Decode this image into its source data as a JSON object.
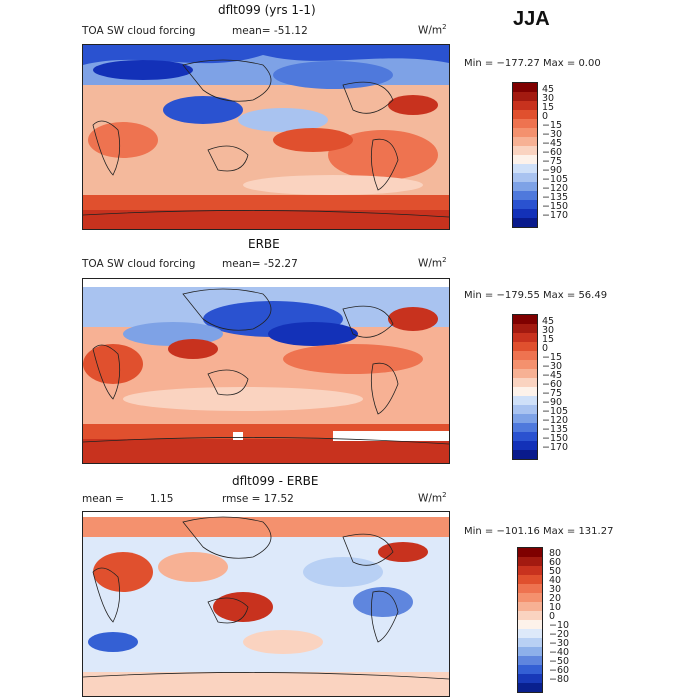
{
  "season": "JJA",
  "panels": [
    {
      "title": "dflt099 (yrs 1-1)",
      "field_label": "TOA SW cloud forcing",
      "stat_label": "mean=",
      "stat_value": "-51.12",
      "units": "W/m",
      "units_exp": "2",
      "minmax": "Min = −177.27 Max =    0.00",
      "colorbar_labels": [
        "45",
        "30",
        "15",
        "0",
        "−15",
        "−30",
        "−45",
        "−60",
        "−75",
        "−90",
        "−105",
        "−120",
        "−135",
        "−150",
        "−170"
      ]
    },
    {
      "title": "ERBE",
      "field_label": "TOA SW cloud forcing",
      "stat_label": "mean=",
      "stat_value": "-52.27",
      "units": "W/m",
      "units_exp": "2",
      "minmax": "Min = −179.55 Max =  56.49",
      "colorbar_labels": [
        "45",
        "30",
        "15",
        "0",
        "−15",
        "−30",
        "−45",
        "−60",
        "−75",
        "−90",
        "−105",
        "−120",
        "−135",
        "−150",
        "−170"
      ]
    },
    {
      "title": "dflt099 - ERBE",
      "field_label": "mean =",
      "stat_label": "1.15",
      "stat_value": "rmse =    17.52",
      "units": "W/m",
      "units_exp": "2",
      "minmax": "Min = −101.16 Max = 131.27",
      "colorbar_labels": [
        "80",
        "60",
        "50",
        "40",
        "30",
        "20",
        "10",
        "0",
        "−10",
        "−20",
        "−30",
        "−40",
        "−50",
        "−60",
        "−80"
      ]
    }
  ],
  "colors": {
    "forcing_scale": [
      "#7f0000",
      "#a31a10",
      "#c8321e",
      "#e0502e",
      "#ee7350",
      "#f4916e",
      "#f7b194",
      "#fad3c0",
      "#fdf2ea",
      "#cfe0f8",
      "#a9c3f0",
      "#7ea2e6",
      "#4f79dc",
      "#2a52d0",
      "#1331b8",
      "#091a8c"
    ],
    "diff_scale": [
      "#7f0000",
      "#a31a10",
      "#c8321e",
      "#e0502e",
      "#ee7350",
      "#f4916e",
      "#f7b194",
      "#fad3c0",
      "#fdf2ea",
      "#dde9fa",
      "#b8d0f4",
      "#8db0ea",
      "#5f86de",
      "#3460d4",
      "#1839b8",
      "#09208e"
    ]
  }
}
